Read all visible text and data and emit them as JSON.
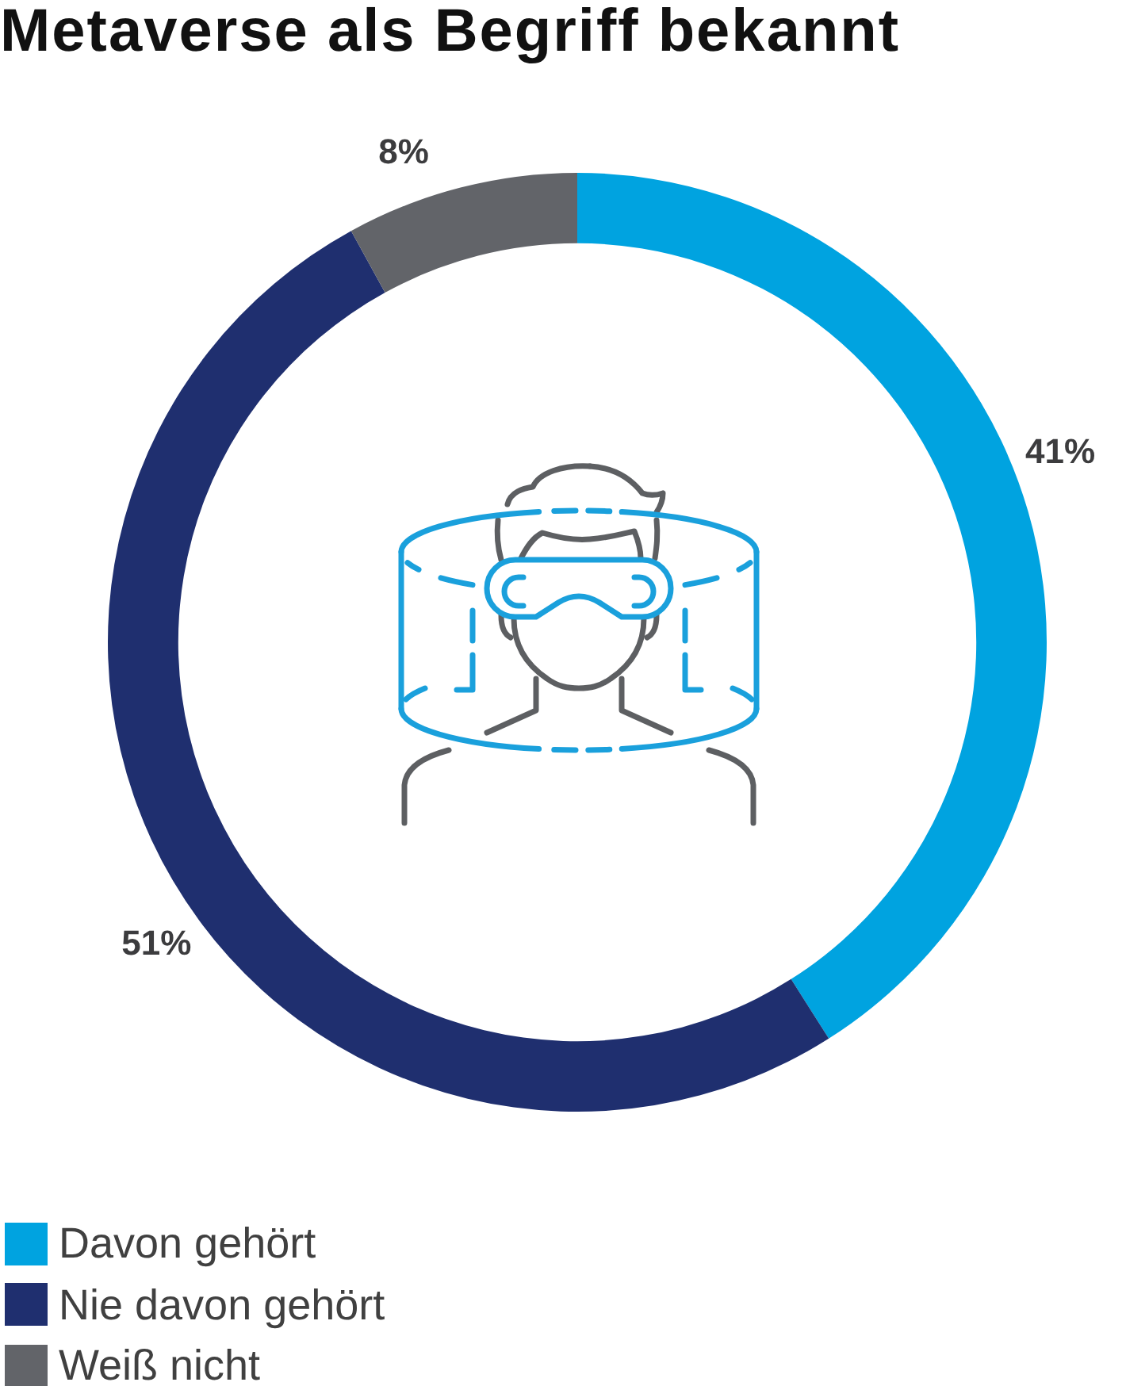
{
  "chart_data": {
    "type": "donut",
    "title": "Metaverse als Begriff bekannt",
    "categories": [
      "Davon gehört",
      "Nie davon gehört",
      "Weiß nicht"
    ],
    "values": [
      41,
      51,
      8
    ],
    "colors": [
      "#00a3e0",
      "#1f2f6f",
      "#626469"
    ],
    "value_labels": [
      "41%",
      "51%",
      "8%"
    ],
    "legend": "bottom left"
  }
}
